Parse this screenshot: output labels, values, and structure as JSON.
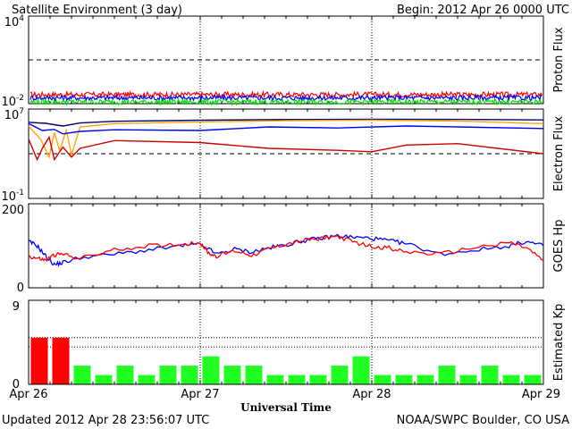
{
  "header": {
    "title": "Satellite Environment (3 day)",
    "begin": "Begin:  2012 Apr 26 0000 UTC"
  },
  "footer": {
    "updated": "Updated 2012 Apr 28 23:56:07 UTC",
    "credit": "NOAA/SWPC Boulder, CO USA"
  },
  "chart_data": [
    {
      "type": "line",
      "panel": "proton",
      "ylabel": "Proton Flux",
      "yscale": "log",
      "ylim": [
        0.01,
        10000
      ],
      "yticks": [
        {
          "base": "10",
          "exp": "4"
        },
        {
          "base": "10",
          "exp": "-2"
        }
      ],
      "threshold": 10,
      "series": [
        {
          "color": "#ff0000",
          "level": 0.042
        },
        {
          "color": "#0000ff",
          "level": 0.025
        },
        {
          "color": "#00dd00",
          "level": 0.013
        }
      ]
    },
    {
      "type": "line",
      "panel": "electron",
      "ylabel": "Electron Flux",
      "yscale": "log",
      "ylim": [
        0.1,
        10000000
      ],
      "yticks": [
        {
          "base": "10",
          "exp": "7"
        },
        {
          "base": "10",
          "exp": "-1"
        }
      ],
      "threshold": 1000,
      "series": [
        {
          "color": "#000080",
          "x": [
            0,
            0.1,
            0.2,
            0.3,
            0.5,
            1,
            1.5,
            2,
            2.5,
            3
          ],
          "y": [
            650000,
            520000,
            300000,
            560000,
            800000,
            1000000,
            1150000,
            1200000,
            1180000,
            1050000
          ]
        },
        {
          "color": "#ffa500",
          "x": [
            0,
            0.07,
            0.12,
            0.15,
            0.18,
            0.22,
            0.25,
            0.3,
            0.5,
            1,
            1.5,
            2,
            2.5,
            3
          ],
          "y": [
            300000,
            20000,
            500,
            80000,
            2000,
            120000,
            800,
            250000,
            500000,
            700000,
            900000,
            1000000,
            850000,
            500000
          ]
        },
        {
          "color": "#0000ff",
          "x": [
            0,
            0.08,
            0.15,
            0.2,
            0.3,
            0.5,
            1,
            1.4,
            1.8,
            2.2,
            2.5,
            3
          ],
          "y": [
            500000,
            120000,
            150000,
            60000,
            100000,
            140000,
            120000,
            250000,
            200000,
            300000,
            250000,
            180000
          ]
        },
        {
          "color": "#cc0000",
          "x": [
            0,
            0.05,
            0.08,
            0.12,
            0.15,
            0.2,
            0.25,
            0.3,
            0.5,
            1,
            1.4,
            1.8,
            2,
            2.2,
            2.5,
            3
          ],
          "y": [
            20000,
            300,
            3000,
            30000,
            300,
            4000,
            500,
            3000,
            15000,
            10000,
            3000,
            2000,
            1500,
            6000,
            8000,
            1000
          ]
        }
      ]
    },
    {
      "type": "line",
      "panel": "hp",
      "ylabel": "GOES Hp",
      "ylim": [
        0,
        200
      ],
      "yticks": [
        "200",
        "0"
      ],
      "series": [
        {
          "color": "#0000ff",
          "x": [
            0,
            0.05,
            0.1,
            0.15,
            0.2,
            0.3,
            0.5,
            0.7,
            0.9,
            1.0,
            1.1,
            1.2,
            1.3,
            1.4,
            1.5,
            1.6,
            1.7,
            1.8,
            1.9,
            2.0,
            2.1,
            2.2,
            2.4,
            2.6,
            2.8,
            2.9,
            3.0
          ],
          "y": [
            110,
            100,
            75,
            55,
            60,
            72,
            80,
            90,
            100,
            103,
            80,
            92,
            85,
            95,
            102,
            112,
            118,
            124,
            120,
            118,
            112,
            105,
            80,
            90,
            100,
            110,
            100
          ]
        },
        {
          "color": "#ff0000",
          "x": [
            0,
            0.05,
            0.1,
            0.15,
            0.2,
            0.3,
            0.5,
            0.7,
            0.9,
            1.0,
            1.05,
            1.1,
            1.2,
            1.3,
            1.4,
            1.5,
            1.6,
            1.7,
            1.8,
            1.9,
            2.0,
            2.1,
            2.2,
            2.4,
            2.6,
            2.8,
            2.9,
            3.0
          ],
          "y": [
            75,
            70,
            65,
            78,
            80,
            70,
            90,
            100,
            104,
            108,
            82,
            75,
            88,
            78,
            92,
            104,
            112,
            118,
            122,
            108,
            98,
            95,
            85,
            80,
            96,
            108,
            95,
            65
          ]
        }
      ]
    },
    {
      "type": "bar",
      "panel": "kp",
      "ylabel": "Estimated Kp",
      "ylim": [
        0,
        9
      ],
      "yticks": [
        "9",
        "0"
      ],
      "thresholds": [
        5,
        4
      ],
      "values": [
        5,
        5,
        2,
        1,
        2,
        1,
        2,
        2,
        3,
        2,
        2,
        1,
        1,
        1,
        2,
        3,
        1,
        1,
        1,
        2,
        1,
        2,
        1,
        1
      ],
      "colors": {
        "storm": "#ff0000",
        "quiet": "#22ff22"
      }
    }
  ],
  "x_axis": {
    "label": "Universal Time",
    "ticks": [
      "Apr 26",
      "Apr 27",
      "Apr 28",
      "Apr 29"
    ]
  }
}
